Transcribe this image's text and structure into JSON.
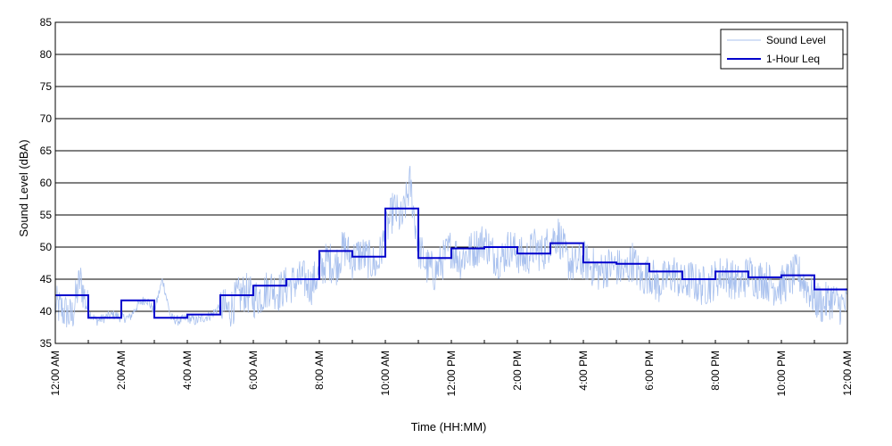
{
  "chart_data": {
    "type": "line",
    "title": "",
    "xlabel": "Time (HH:MM)",
    "ylabel": "Sound Level (dBA)",
    "ylim": [
      35,
      85
    ],
    "yticks": [
      35,
      40,
      45,
      50,
      55,
      60,
      65,
      70,
      75,
      80,
      85
    ],
    "xlim": [
      0,
      24
    ],
    "xticks": [
      {
        "hour": 0,
        "label": "12:00 AM"
      },
      {
        "hour": 2,
        "label": "2:00 AM"
      },
      {
        "hour": 4,
        "label": "4:00 AM"
      },
      {
        "hour": 6,
        "label": "6:00 AM"
      },
      {
        "hour": 8,
        "label": "8:00 AM"
      },
      {
        "hour": 10,
        "label": "10:00 AM"
      },
      {
        "hour": 12,
        "label": "12:00 PM"
      },
      {
        "hour": 14,
        "label": "2:00 PM"
      },
      {
        "hour": 16,
        "label": "4:00 PM"
      },
      {
        "hour": 18,
        "label": "6:00 PM"
      },
      {
        "hour": 20,
        "label": "8:00 PM"
      },
      {
        "hour": 22,
        "label": "10:00 PM"
      },
      {
        "hour": 24,
        "label": "12:00 AM"
      }
    ],
    "grid": {
      "horizontal": true,
      "vertical": false
    },
    "legend": {
      "position": "top-right"
    },
    "series": [
      {
        "name": "Sound Level",
        "color": "#a9c1ee",
        "style": "thin-noisy-line",
        "x": [
          0,
          0.25,
          0.5,
          0.75,
          1,
          1.25,
          1.5,
          1.75,
          2,
          2.25,
          2.5,
          2.75,
          3,
          3.25,
          3.5,
          3.75,
          4,
          4.25,
          4.5,
          4.75,
          5,
          5.25,
          5.5,
          5.75,
          6,
          6.25,
          6.5,
          6.75,
          7,
          7.25,
          7.5,
          7.75,
          8,
          8.25,
          8.5,
          8.75,
          9,
          9.25,
          9.5,
          9.75,
          10,
          10.25,
          10.5,
          10.75,
          11,
          11.25,
          11.5,
          11.75,
          12,
          12.25,
          12.5,
          12.75,
          13,
          13.25,
          13.5,
          13.75,
          14,
          14.25,
          14.5,
          14.75,
          15,
          15.25,
          15.5,
          15.75,
          16,
          16.25,
          16.5,
          16.75,
          17,
          17.25,
          17.5,
          17.75,
          18,
          18.25,
          18.5,
          18.75,
          19,
          19.25,
          19.5,
          19.75,
          20,
          20.25,
          20.5,
          20.75,
          21,
          21.25,
          21.5,
          21.75,
          22,
          22.25,
          22.5,
          22.75,
          23,
          23.25,
          23.5,
          23.75,
          24
        ],
        "y": [
          41,
          40,
          39,
          45,
          40,
          38.5,
          39,
          39.5,
          39,
          39,
          41,
          42,
          40,
          45,
          39,
          38.5,
          39,
          38.5,
          39,
          39.5,
          41,
          40,
          42,
          43,
          42,
          42.5,
          44,
          43,
          44,
          44.5,
          45,
          44,
          46,
          48,
          47,
          50,
          48,
          49,
          48,
          47,
          52,
          56,
          54,
          60,
          50,
          47,
          46,
          48,
          50,
          48,
          49,
          50,
          51,
          49,
          48,
          50,
          49,
          48,
          50,
          49,
          51,
          52,
          48,
          47,
          48,
          47,
          46,
          47,
          47,
          46,
          48,
          45,
          46,
          44,
          45,
          46,
          44,
          45,
          44,
          44,
          45,
          46,
          45,
          44,
          46,
          45,
          45,
          44,
          44,
          45,
          46,
          44,
          42,
          41,
          42,
          41,
          41
        ]
      },
      {
        "name": "1-Hour Leq",
        "color": "#0000cc",
        "style": "step",
        "hours": [
          0,
          1,
          2,
          3,
          4,
          5,
          6,
          7,
          8,
          9,
          10,
          11,
          12,
          13,
          14,
          15,
          16,
          17,
          18,
          19,
          20,
          21,
          22,
          23
        ],
        "values": [
          42.5,
          39.0,
          41.7,
          39.0,
          39.5,
          42.5,
          44.0,
          45.0,
          49.4,
          48.5,
          56.0,
          48.3,
          49.8,
          50.0,
          49.0,
          50.6,
          47.6,
          47.4,
          46.2,
          45.0,
          46.2,
          45.3,
          45.6,
          43.4
        ]
      }
    ]
  }
}
